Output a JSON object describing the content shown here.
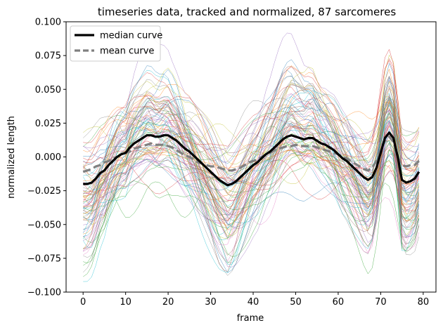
{
  "chart_data": {
    "type": "line",
    "title": "timeseries data, tracked and normalized, 87 sarcomeres",
    "xlabel": "frame",
    "ylabel": "normalized length",
    "xlim": [
      -4,
      83
    ],
    "ylim": [
      -0.1,
      0.1
    ],
    "xticks": [
      0,
      10,
      20,
      30,
      40,
      50,
      60,
      70,
      80
    ],
    "yticks": [
      -0.1,
      -0.075,
      -0.05,
      -0.025,
      0.0,
      0.025,
      0.05,
      0.075,
      0.1
    ],
    "xtick_labels": [
      "0",
      "10",
      "20",
      "30",
      "40",
      "50",
      "60",
      "70",
      "80"
    ],
    "ytick_labels": [
      "−0.100",
      "−0.075",
      "−0.050",
      "−0.025",
      "0.000",
      "0.025",
      "0.050",
      "0.075",
      "0.100"
    ],
    "grid": false,
    "legend_position": "top-left",
    "n_traces": 87,
    "series": [
      {
        "name": "median curve",
        "color": "#000000",
        "style": "solid",
        "x": [
          0,
          1,
          2,
          3,
          4,
          5,
          6,
          7,
          8,
          9,
          10,
          11,
          12,
          13,
          14,
          15,
          16,
          17,
          18,
          19,
          20,
          21,
          22,
          23,
          24,
          25,
          26,
          27,
          28,
          29,
          30,
          31,
          32,
          33,
          34,
          35,
          36,
          37,
          38,
          39,
          40,
          41,
          42,
          43,
          44,
          45,
          46,
          47,
          48,
          49,
          50,
          51,
          52,
          53,
          54,
          55,
          56,
          57,
          58,
          59,
          60,
          61,
          62,
          63,
          64,
          65,
          66,
          67,
          68,
          69,
          70,
          71,
          72,
          73,
          74,
          75,
          76,
          77,
          78,
          79
        ],
        "values": [
          -0.02,
          -0.02,
          -0.019,
          -0.016,
          -0.012,
          -0.01,
          -0.006,
          -0.003,
          0.0,
          0.002,
          0.003,
          0.007,
          0.01,
          0.012,
          0.014,
          0.016,
          0.016,
          0.015,
          0.015,
          0.016,
          0.016,
          0.014,
          0.012,
          0.009,
          0.006,
          0.004,
          0.001,
          -0.002,
          -0.005,
          -0.008,
          -0.011,
          -0.014,
          -0.017,
          -0.019,
          -0.021,
          -0.02,
          -0.018,
          -0.015,
          -0.012,
          -0.009,
          -0.006,
          -0.004,
          -0.001,
          0.002,
          0.004,
          0.007,
          0.01,
          0.013,
          0.015,
          0.016,
          0.015,
          0.014,
          0.013,
          0.014,
          0.014,
          0.012,
          0.01,
          0.009,
          0.007,
          0.005,
          0.002,
          -0.001,
          -0.003,
          -0.006,
          -0.009,
          -0.012,
          -0.015,
          -0.017,
          -0.015,
          -0.008,
          0.003,
          0.014,
          0.018,
          0.014,
          0.0,
          -0.017,
          -0.019,
          -0.018,
          -0.016,
          -0.011
        ]
      },
      {
        "name": "mean curve",
        "color": "#808080",
        "style": "dashed",
        "x": [
          0,
          1,
          2,
          3,
          4,
          5,
          6,
          7,
          8,
          9,
          10,
          11,
          12,
          13,
          14,
          15,
          16,
          17,
          18,
          19,
          20,
          21,
          22,
          23,
          24,
          25,
          26,
          27,
          28,
          29,
          30,
          31,
          32,
          33,
          34,
          35,
          36,
          37,
          38,
          39,
          40,
          41,
          42,
          43,
          44,
          45,
          46,
          47,
          48,
          49,
          50,
          51,
          52,
          53,
          54,
          55,
          56,
          57,
          58,
          59,
          60,
          61,
          62,
          63,
          64,
          65,
          66,
          67,
          68,
          69,
          70,
          71,
          72,
          73,
          74,
          75,
          76,
          77,
          78,
          79
        ],
        "values": [
          -0.011,
          -0.01,
          -0.009,
          -0.007,
          -0.006,
          -0.004,
          -0.003,
          -0.001,
          0.0,
          0.002,
          0.003,
          0.004,
          0.006,
          0.007,
          0.008,
          0.009,
          0.01,
          0.009,
          0.009,
          0.009,
          0.008,
          0.007,
          0.005,
          0.003,
          0.001,
          0.0,
          -0.002,
          -0.004,
          -0.005,
          -0.006,
          -0.007,
          -0.007,
          -0.008,
          -0.009,
          -0.01,
          -0.01,
          -0.009,
          -0.008,
          -0.006,
          -0.004,
          -0.003,
          -0.002,
          0.0,
          0.002,
          0.003,
          0.005,
          0.006,
          0.007,
          0.008,
          0.008,
          0.009,
          0.008,
          0.008,
          0.008,
          0.008,
          0.007,
          0.006,
          0.005,
          0.004,
          0.003,
          0.002,
          0.0,
          -0.001,
          -0.003,
          -0.005,
          -0.007,
          -0.009,
          -0.01,
          -0.008,
          -0.003,
          0.005,
          0.012,
          0.015,
          0.011,
          0.0,
          -0.006,
          -0.007,
          -0.006,
          -0.006,
          -0.003
        ]
      }
    ],
    "trace_colors": [
      "#1f77b4",
      "#ff7f0e",
      "#2ca02c",
      "#d62728",
      "#9467bd",
      "#8c564b",
      "#e377c2",
      "#7f7f7f",
      "#bcbd22",
      "#17becf"
    ]
  }
}
